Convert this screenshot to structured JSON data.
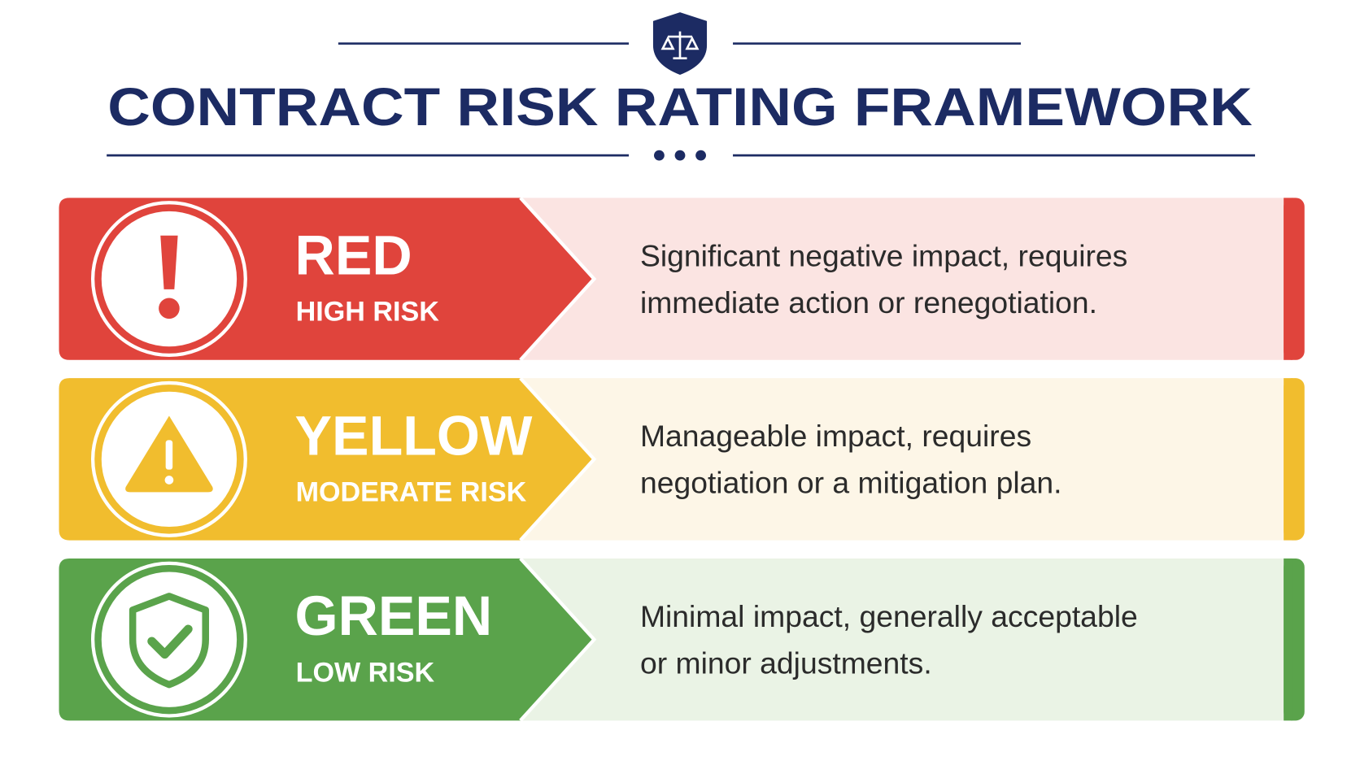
{
  "header": {
    "title": "CONTRACT RISK RATING FRAMEWORK"
  },
  "rows": [
    {
      "level": "RED",
      "risk": "HIGH RISK",
      "description": [
        "Significant negative impact, requires",
        "immediate action or renegotiation."
      ]
    },
    {
      "level": "YELLOW",
      "risk": "MODERATE RISK",
      "description": [
        "Manageable impact, requires",
        "negotiation or a mitigation plan."
      ]
    },
    {
      "level": "GREEN",
      "risk": "LOW RISK",
      "description": [
        "Minimal impact, generally acceptable",
        "or minor adjustments."
      ]
    }
  ]
}
